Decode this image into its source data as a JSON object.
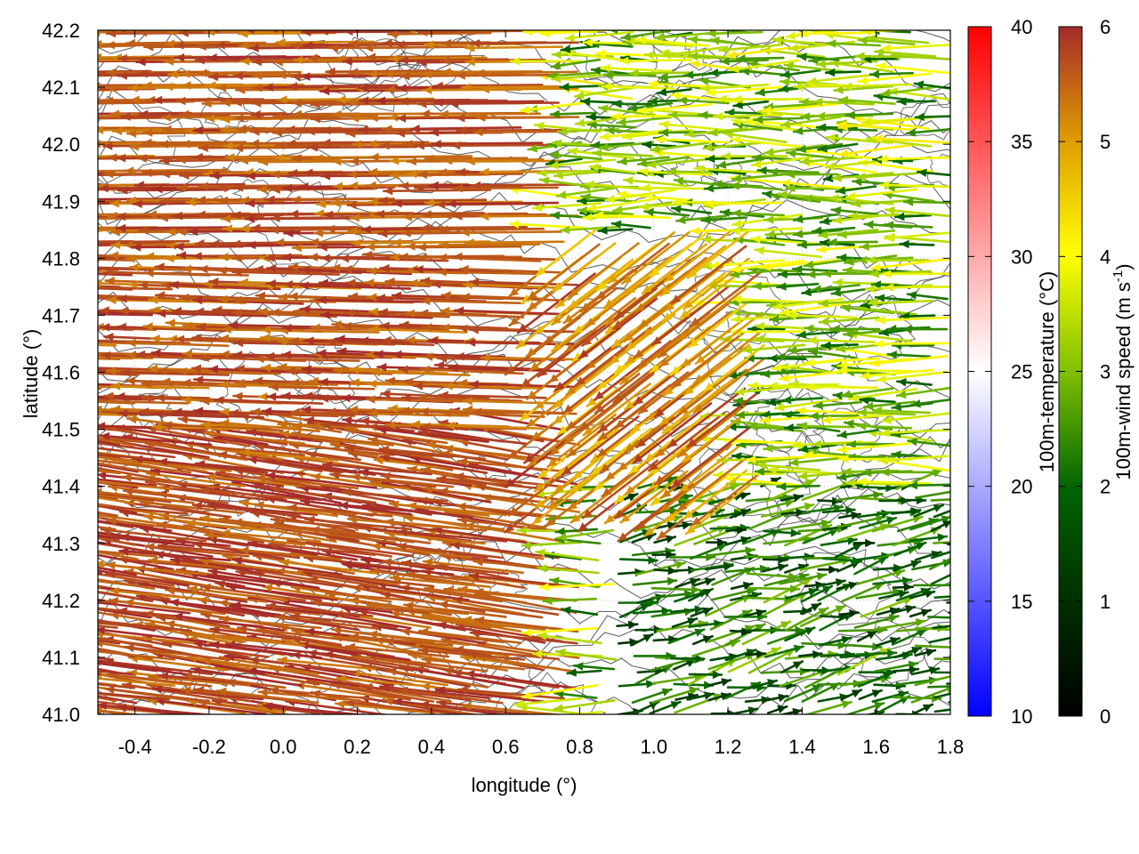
{
  "chart_data": {
    "type": "quiver",
    "xlabel": "longitude (°)",
    "ylabel": "latitude (°)",
    "xlim": [
      -0.5,
      1.8
    ],
    "ylim": [
      41.0,
      42.2
    ],
    "xticks": [
      "-0.4",
      "-0.2",
      "0.0",
      "0.2",
      "0.4",
      "0.6",
      "0.8",
      "1.0",
      "1.2",
      "1.4",
      "1.6",
      "1.8"
    ],
    "yticks": [
      "41.0",
      "41.1",
      "41.2",
      "41.3",
      "41.4",
      "41.5",
      "41.6",
      "41.7",
      "41.8",
      "41.9",
      "42.0",
      "42.1",
      "42.2"
    ],
    "grid": true,
    "contours": "terrain elevation contours (dark grey lines)",
    "temperature_colorbar": {
      "label": "100m-temperature (°C)",
      "range": [
        10,
        40
      ],
      "ticks": [
        "10",
        "15",
        "20",
        "25",
        "30",
        "35",
        "40"
      ],
      "colors": [
        "#0000ff",
        "#ffffff",
        "#ff0000"
      ]
    },
    "wind_colorbar": {
      "label": "100m-wind speed (m s-1)",
      "label_main": "100m-wind speed (m s",
      "label_sup": "-1",
      "label_end": ")",
      "range": [
        0,
        6
      ],
      "ticks": [
        "0",
        "1",
        "2",
        "3",
        "4",
        "5",
        "6"
      ],
      "colors": [
        "#000000",
        "#006400",
        "#7fc000",
        "#ffff00",
        "#e0a000",
        "#c06020",
        "#a52a2a"
      ]
    },
    "wind_field_description": "Strong westward (easterly) flow of 5-6 m/s over the western half (lon -0.5 to 0.8), weaker 1-3 m/s eastward/northeastward flow in the south-east quadrant (lon 0.9 to 1.8, lat 41.0 to 41.4), mixed 2-4 m/s westward flow in the north-east."
  }
}
